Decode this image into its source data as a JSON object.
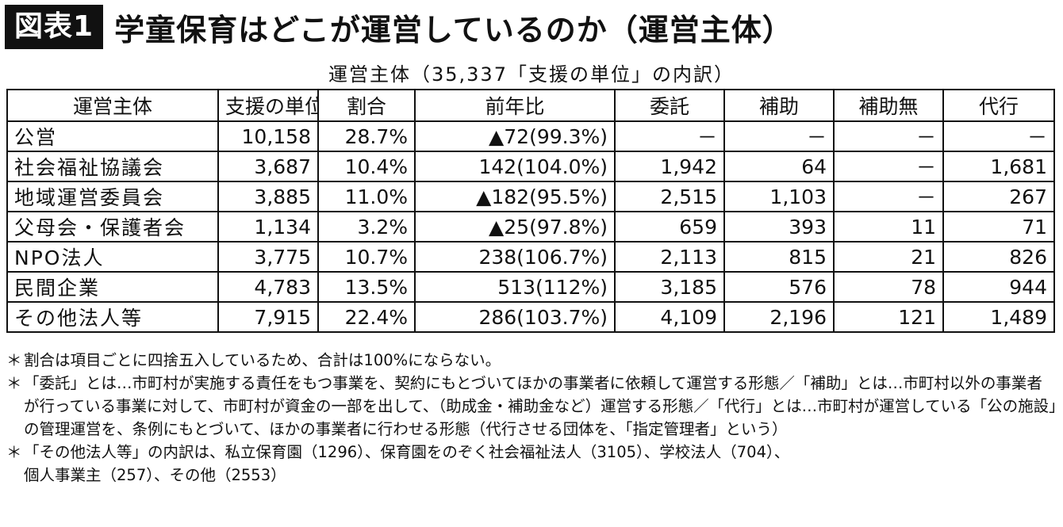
{
  "header": {
    "badge": "図表1",
    "title": "学童保育はどこが運営しているのか（運営主体）"
  },
  "subtitle": "運営主体（35,337「支援の単位」の内訳）",
  "table": {
    "columns": [
      "運営主体",
      "支援の単位",
      "割合",
      "前年比",
      "委託",
      "補助",
      "補助無",
      "代行"
    ],
    "rows": [
      [
        "公営",
        "10,158",
        "28.7%",
        "▲72(99.3%)",
        "－",
        "－",
        "－",
        "－"
      ],
      [
        "社会福祉協議会",
        "3,687",
        "10.4%",
        "142(104.0%)",
        "1,942",
        "64",
        "－",
        "1,681"
      ],
      [
        "地域運営委員会",
        "3,885",
        "11.0%",
        "▲182(95.5%)",
        "2,515",
        "1,103",
        "－",
        "267"
      ],
      [
        "父母会・保護者会",
        "1,134",
        "3.2%",
        "▲25(97.8%)",
        "659",
        "393",
        "11",
        "71"
      ],
      [
        "NPO法人",
        "3,775",
        "10.7%",
        "238(106.7%)",
        "2,113",
        "815",
        "21",
        "826"
      ],
      [
        "民間企業",
        "4,783",
        "13.5%",
        "513(112%)",
        "3,185",
        "576",
        "78",
        "944"
      ],
      [
        "その他法人等",
        "7,915",
        "22.4%",
        "286(103.7%)",
        "4,109",
        "2,196",
        "121",
        "1,489"
      ]
    ]
  },
  "notes": [
    {
      "mark": "＊",
      "text": "割合は項目ごとに四捨五入しているため、合計は100%にならない。"
    },
    {
      "mark": "＊",
      "text": "「委託」とは…市町村が実施する責任をもつ事業を、契約にもとづいてほかの事業者に依頼して運営する形態／「補助」とは…市町村以外の事業者が行っている事業に対して、市町村が資金の一部を出して、（助成金・補助金など）運営する形態／「代行」とは…市町村が運営している「公の施設」の管理運営を、条例にもとづいて、ほかの事業者に行わせる形態（代行させる団体を、「指定管理者」という）"
    },
    {
      "mark": "＊",
      "text": "「その他法人等」の内訳は、私立保育園（1296）、保育園をのぞく社会福祉法人（3105）、学校法人（704）、\n個人事業主（257）、その他（2553）"
    }
  ]
}
